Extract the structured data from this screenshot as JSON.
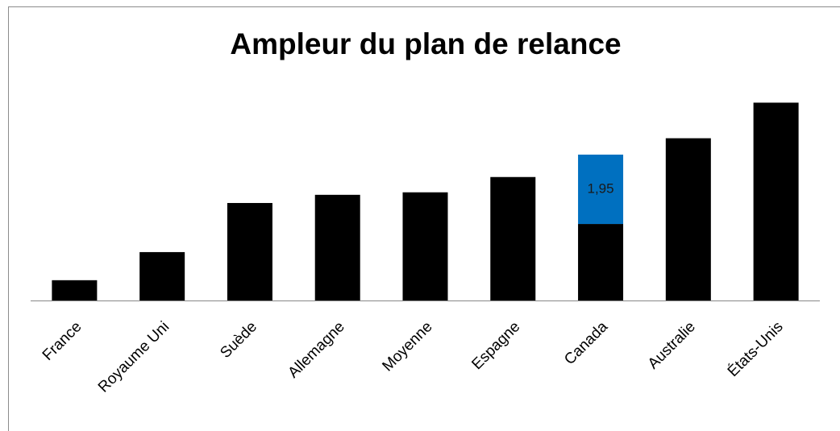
{
  "chart_data": {
    "type": "stacked_bar",
    "title": "Ampleur du plan de relance",
    "categories": [
      "France",
      "Royaume Uni",
      "Suède",
      "Allemagne",
      "Moyenne",
      "Espagne",
      "Canada",
      "Australie",
      "États-Unis"
    ],
    "series": [
      {
        "color": "#000000",
        "values": [
          0.57,
          1.36,
          2.74,
          2.97,
          3.04,
          3.47,
          2.15,
          4.56,
          5.56
        ]
      },
      {
        "color": "#0070c0",
        "values": [
          null,
          null,
          null,
          null,
          null,
          null,
          1.95,
          null,
          null
        ],
        "value_labels": [
          null,
          null,
          null,
          null,
          null,
          null,
          "1,95",
          null,
          null
        ]
      }
    ],
    "ylim": [
      0,
      6
    ],
    "grid": false
  }
}
